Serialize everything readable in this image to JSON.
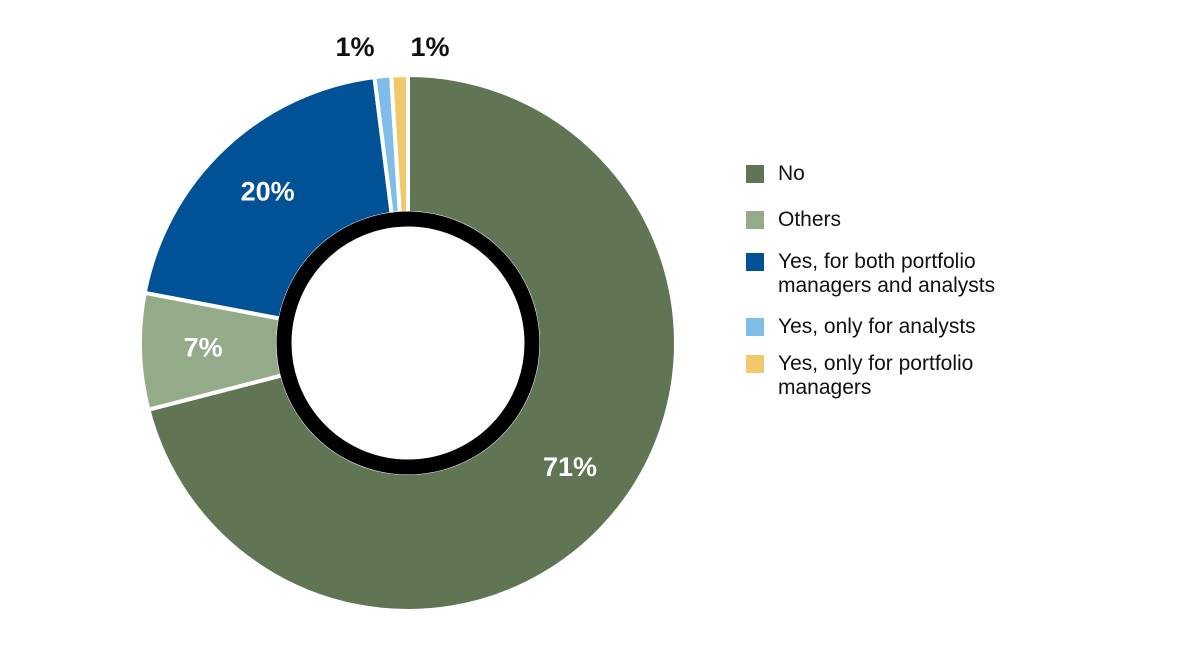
{
  "chart_data": {
    "type": "pie",
    "style": "donut",
    "legend_position": "right",
    "slices": [
      {
        "label": "No",
        "value": 71,
        "data_label": "71%",
        "color": "#5f7553"
      },
      {
        "label": "Others",
        "value": 7,
        "data_label": "7%",
        "color": "#93ab88"
      },
      {
        "label": "Yes, for both portfolio managers and analysts",
        "value": 20,
        "data_label": "20%",
        "color": "#005195"
      },
      {
        "label": "Yes, only for analysts",
        "value": 1,
        "data_label": "1%",
        "color": "#7dbde7"
      },
      {
        "label": "Yes, only for portfolio managers",
        "value": 1,
        "data_label": "1%",
        "color": "#f0c96a"
      }
    ]
  },
  "legend": {
    "items": [
      {
        "lines": [
          "No"
        ],
        "color": "#5f7553"
      },
      {
        "lines": [
          "Others"
        ],
        "color": "#93ab88"
      },
      {
        "lines": [
          "Yes, for both portfolio",
          "managers and analysts"
        ],
        "color": "#005195"
      },
      {
        "lines": [
          "Yes, only for analysts"
        ],
        "color": "#7dbde7"
      },
      {
        "lines": [
          "Yes, only for portfolio",
          "managers"
        ],
        "color": "#f0c96a"
      }
    ]
  }
}
